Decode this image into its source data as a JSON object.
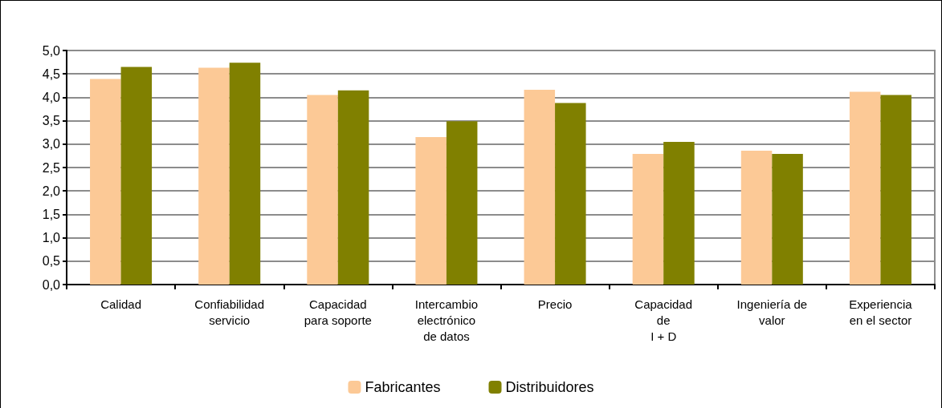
{
  "chart_data": {
    "type": "bar",
    "categories": [
      "Calidad",
      "Confiabilidad\nservicio",
      "Capacidad\npara soporte",
      "Intercambio\nelectrónico\nde datos",
      "Precio",
      "Capacidad\nde\nI + D",
      "Ingeniería de\nvalor",
      "Experiencia\nen el sector"
    ],
    "series": [
      {
        "name": "Fabricantes",
        "color": "#fcc996",
        "values": [
          4.39,
          4.63,
          4.05,
          3.15,
          4.16,
          2.79,
          2.86,
          4.12
        ]
      },
      {
        "name": "Distribuidores",
        "color": "#808000",
        "values": [
          4.65,
          4.74,
          4.15,
          3.49,
          3.88,
          3.05,
          2.79,
          4.05
        ]
      }
    ],
    "ylim": [
      0,
      5
    ],
    "yticks": [
      {
        "value": 0,
        "label": "0,0"
      },
      {
        "value": 0.5,
        "label": "0,5"
      },
      {
        "value": 1,
        "label": "1,0"
      },
      {
        "value": 1.5,
        "label": "1,5"
      },
      {
        "value": 2,
        "label": "2,0"
      },
      {
        "value": 2.5,
        "label": "2,5"
      },
      {
        "value": 3,
        "label": "3,0"
      },
      {
        "value": 3.5,
        "label": "3,5"
      },
      {
        "value": 4,
        "label": "4,0"
      },
      {
        "value": 4.5,
        "label": "4,5"
      },
      {
        "value": 5,
        "label": "5,0"
      }
    ],
    "grid": "y",
    "legend": "bottom"
  }
}
